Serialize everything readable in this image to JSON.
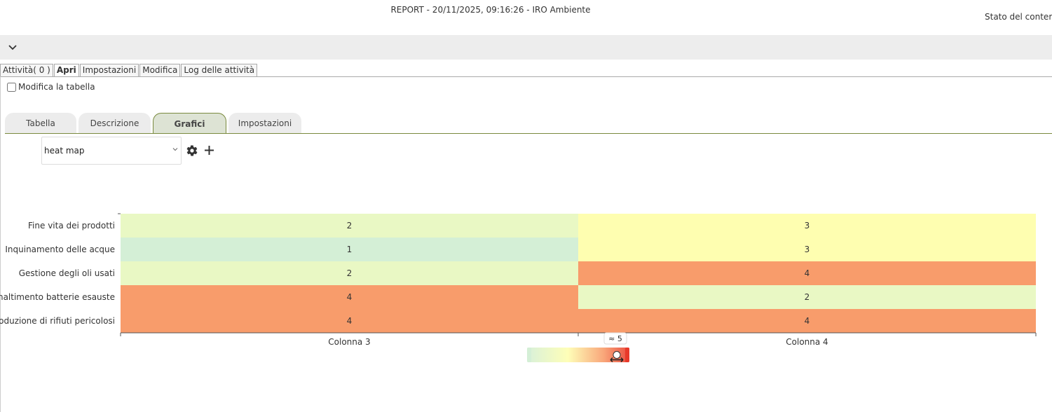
{
  "header": {
    "report_title": "REPORT - 20/11/2025, 09:16:26 - IRO Ambiente",
    "stato": "Stato del conter"
  },
  "top_tabs": [
    {
      "label": "Attività( 0 )",
      "active": false
    },
    {
      "label": "Apri",
      "active": true
    },
    {
      "label": "Impostazioni",
      "active": false
    },
    {
      "label": "Modifica",
      "active": false
    },
    {
      "label": "Log delle attività",
      "active": false
    }
  ],
  "edit_table": {
    "label": "Modifica la tabella",
    "checked": false
  },
  "inner_tabs": [
    {
      "label": "Tabella",
      "active": false
    },
    {
      "label": "Descrizione",
      "active": false
    },
    {
      "label": "Grafici",
      "active": true
    },
    {
      "label": "Impostazioni",
      "active": false
    }
  ],
  "chart_selector": {
    "value": "heat map"
  },
  "icons": {
    "collapse": "chevron-down-icon",
    "settings": "gear-icon",
    "add": "plus-icon"
  },
  "chart_data": {
    "type": "heatmap",
    "columns": [
      "Colonna 3",
      "Colonna 4"
    ],
    "rows": [
      "Fine vita dei prodotti",
      "Inquinamento delle acque",
      "Gestione degli oli usati",
      "Smaltimento batterie esauste",
      "Produzione di rifiuti pericolosi"
    ],
    "values": [
      [
        2,
        3
      ],
      [
        1,
        3
      ],
      [
        2,
        4
      ],
      [
        4,
        2
      ],
      [
        4,
        4
      ]
    ],
    "color_scale": [
      {
        "value": 1,
        "color": "#d4efd6"
      },
      {
        "value": 2,
        "color": "#e9f8c4"
      },
      {
        "value": 3,
        "color": "#fefeb0"
      },
      {
        "value": 4,
        "color": "#f89c6b"
      },
      {
        "value": 5,
        "color": "#e8392a"
      }
    ],
    "legend": {
      "label": "≈ 5",
      "min": 1,
      "max": 5,
      "handle_value": 5
    }
  }
}
